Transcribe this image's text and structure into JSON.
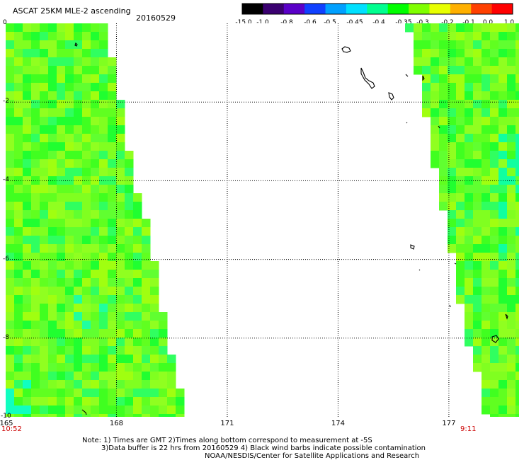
{
  "header": {
    "title": "ASCAT 25KM MLE-2 ascending",
    "date": "20160529"
  },
  "colorbar": {
    "labels": [
      "-15.0",
      "-1.0",
      "-0.8",
      "-0.6",
      "-0.5",
      "-0.45",
      "-0.4",
      "-0.35",
      "-0.3",
      "-0.2",
      "-0.1",
      "0.0",
      "1.0"
    ],
    "colors": [
      "#000000",
      "#3a0070",
      "#5a00c8",
      "#1040ff",
      "#00a0ff",
      "#00e0ff",
      "#00ff90",
      "#00ff00",
      "#80ff00",
      "#e8ff00",
      "#ffb000",
      "#ff4000",
      "#ff0000"
    ]
  },
  "axes": {
    "lat_labels": [
      "0",
      "-2",
      "-4",
      "-6",
      "-8",
      "-10"
    ],
    "lon_labels": [
      "165",
      "168",
      "171",
      "174",
      "177"
    ],
    "lat_range": [
      -10,
      0
    ],
    "lon_range": [
      165,
      178.9
    ]
  },
  "times": {
    "left": "10:52",
    "right": "9:11"
  },
  "notes": [
    "Note: 1) Times are GMT 2)Times along bottom correspond to measurement at -5S",
    "3)Data buffer is 22 hrs from 20160529 4) Black wind barbs indicate possible contamination",
    "NOAA/NESDIS/Center for Satellite Applications and Research"
  ],
  "swaths": {
    "left_edge_lon_at_lat": [
      [
        0,
        167.7
      ],
      [
        -1,
        167.9
      ],
      [
        -2,
        168.1
      ],
      [
        -3,
        168.3
      ],
      [
        -4,
        168.5
      ],
      [
        -5,
        168.8
      ],
      [
        -6,
        169.0
      ],
      [
        -7,
        169.2
      ],
      [
        -8,
        169.4
      ],
      [
        -9,
        169.6
      ],
      [
        -10,
        169.9
      ]
    ],
    "right_edge_lon_at_lat": [
      [
        0,
        175.9
      ],
      [
        -1,
        176.1
      ],
      [
        -2,
        176.3
      ],
      [
        -3,
        176.5
      ],
      [
        -4,
        176.7
      ],
      [
        -5,
        176.9
      ],
      [
        -6,
        177.1
      ],
      [
        -7,
        177.3
      ],
      [
        -8,
        177.5
      ],
      [
        -9,
        177.8
      ],
      [
        -10,
        178.0
      ]
    ]
  },
  "islands": "coastline-contours"
}
